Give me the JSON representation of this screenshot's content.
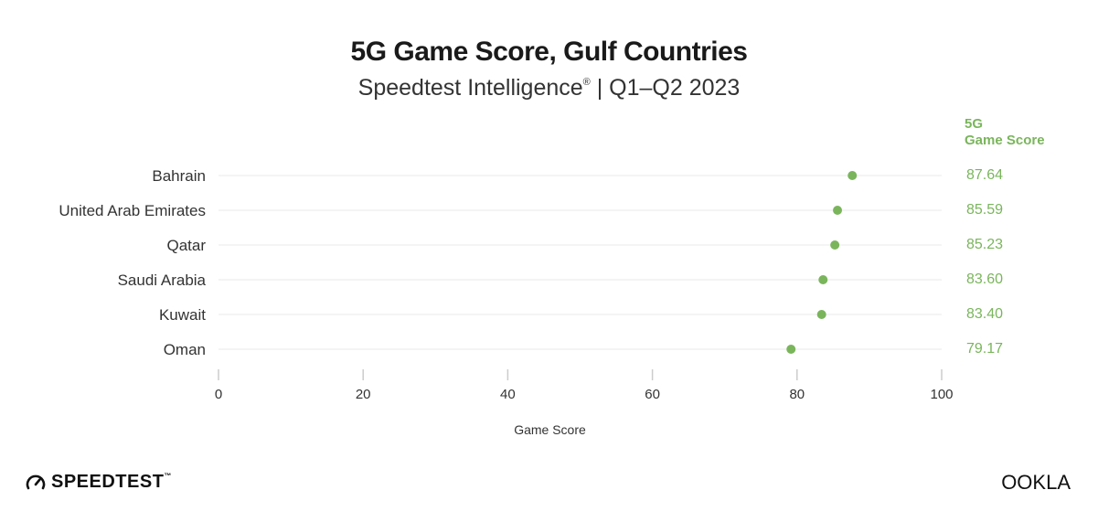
{
  "header": {
    "title": "5G Game Score, Gulf Countries",
    "subtitle_main": "Speedtest Intelligence",
    "subtitle_mark": "®",
    "subtitle_period": " | Q1–Q2 2023"
  },
  "value_column": {
    "line1": "5G",
    "line2": "Game Score"
  },
  "branding": {
    "left_logo": "SPEEDTEST",
    "left_mark": "™",
    "right_logo": "OOKLA"
  },
  "colors": {
    "accent": "#7ab55c",
    "text_dark": "#333333",
    "grid": "#e8e8e8",
    "axis": "#cccccc"
  },
  "chart_data": {
    "type": "scatter",
    "title": "5G Game Score, Gulf Countries",
    "subtitle": "Speedtest Intelligence® | Q1–Q2 2023",
    "xlabel": "Game Score",
    "ylabel": "",
    "xlim": [
      0,
      100
    ],
    "xticks": [
      0,
      20,
      40,
      60,
      80,
      100
    ],
    "categories": [
      "Bahrain",
      "United Arab Emirates",
      "Qatar",
      "Saudi Arabia",
      "Kuwait",
      "Oman"
    ],
    "values": [
      87.64,
      85.59,
      85.23,
      83.6,
      83.4,
      79.17
    ],
    "value_labels": [
      "87.64",
      "85.59",
      "85.23",
      "83.60",
      "83.40",
      "79.17"
    ],
    "grid": true
  }
}
